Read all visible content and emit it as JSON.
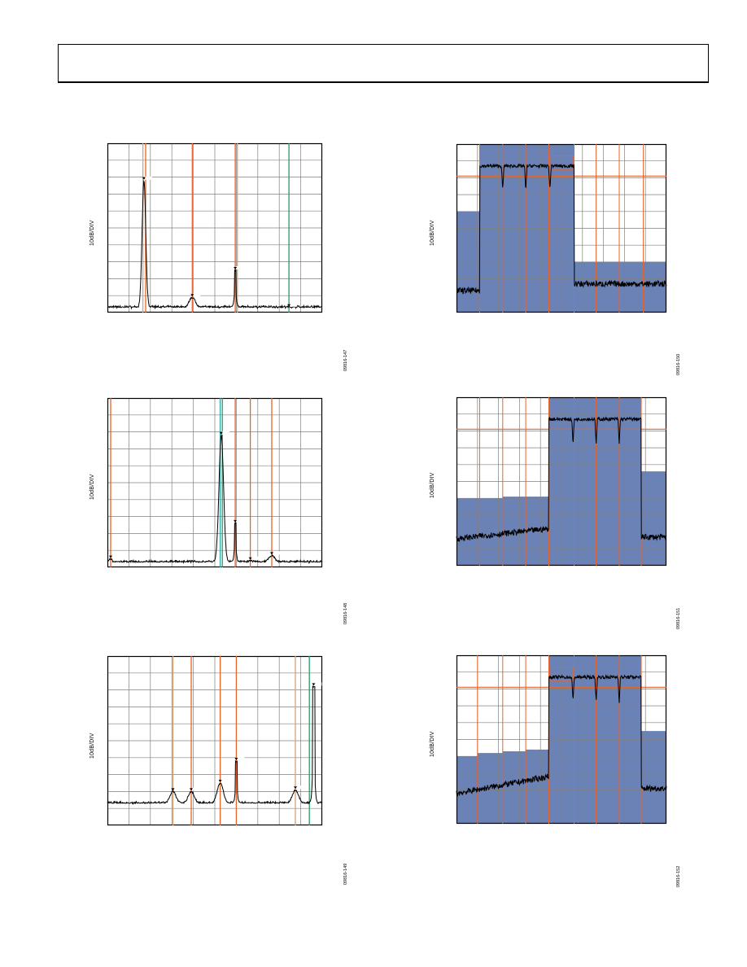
{
  "header": {
    "text": ""
  },
  "colors": {
    "grid": "#808080",
    "trace": "#000000",
    "orange": "#e8632a",
    "tan": "#d9a273",
    "green": "#2a9a68",
    "teal": "#3aa0a0",
    "blue_fill": "#6a82b5"
  },
  "panels": [
    {
      "id": "p1",
      "ylabel": "10dB/DIV",
      "figure_id": "09816-147",
      "markers": [
        {
          "pos": 0.165,
          "color": "tan"
        },
        {
          "pos": 0.178,
          "color": "orange"
        },
        {
          "pos": 0.395,
          "color": "orange"
        },
        {
          "pos": 0.595,
          "color": "orange"
        },
        {
          "pos": 0.605,
          "color": "tan"
        },
        {
          "pos": 0.845,
          "color": "green"
        }
      ],
      "peaks": [
        {
          "pos": 0.17,
          "level": 0.78,
          "width": 0.012
        },
        {
          "pos": 0.395,
          "level": 0.09,
          "width": 0.02
        },
        {
          "pos": 0.595,
          "level": 0.25,
          "width": 0.004
        },
        {
          "pos": 0.845,
          "level": 0.03,
          "width": 0.02
        }
      ],
      "noise_floor": 0.03
    },
    {
      "id": "p2",
      "ylabel": "10dB/DIV",
      "figure_id": "09816-148",
      "markers": [
        {
          "pos": 0.015,
          "color": "orange"
        },
        {
          "pos": 0.525,
          "color": "teal"
        },
        {
          "pos": 0.535,
          "color": "green"
        },
        {
          "pos": 0.595,
          "color": "orange"
        },
        {
          "pos": 0.665,
          "color": "orange"
        },
        {
          "pos": 0.765,
          "color": "orange"
        }
      ],
      "peaks": [
        {
          "pos": 0.015,
          "level": 0.05,
          "width": 0.01
        },
        {
          "pos": 0.53,
          "level": 0.78,
          "width": 0.015
        },
        {
          "pos": 0.595,
          "level": 0.26,
          "width": 0.004
        },
        {
          "pos": 0.665,
          "level": 0.04,
          "width": 0.015
        },
        {
          "pos": 0.765,
          "level": 0.07,
          "width": 0.02
        }
      ],
      "noise_floor": 0.03
    },
    {
      "id": "p3",
      "ylabel": "10dB/DIV",
      "figure_id": "09816-149",
      "markers": [
        {
          "pos": 0.305,
          "color": "tan"
        },
        {
          "pos": 0.39,
          "color": "orange"
        },
        {
          "pos": 0.525,
          "color": "orange"
        },
        {
          "pos": 0.6,
          "color": "orange"
        },
        {
          "pos": 0.875,
          "color": "tan"
        },
        {
          "pos": 0.94,
          "color": "green"
        }
      ],
      "peaks": [
        {
          "pos": 0.305,
          "level": 0.2,
          "width": 0.02
        },
        {
          "pos": 0.39,
          "level": 0.2,
          "width": 0.02
        },
        {
          "pos": 0.525,
          "level": 0.25,
          "width": 0.02
        },
        {
          "pos": 0.6,
          "level": 0.38,
          "width": 0.004
        },
        {
          "pos": 0.875,
          "level": 0.21,
          "width": 0.02
        },
        {
          "pos": 0.96,
          "level": 0.82,
          "width": 0.006
        }
      ],
      "noise_floor": 0.13
    },
    {
      "id": "p4",
      "ylabel": "10dB/DIV",
      "figure_id": "09816-150",
      "masks": [
        {
          "start": 0.0,
          "end": 0.11,
          "level": 0.6
        },
        {
          "start": 0.11,
          "end": 0.56,
          "level": 1.0
        },
        {
          "start": 0.56,
          "end": 1.0,
          "level": 0.3
        }
      ],
      "limit_level": 0.81,
      "vlines": [
        0.11,
        0.22,
        0.33,
        0.44,
        0.56,
        0.665,
        0.775,
        0.89
      ],
      "band": {
        "start": 0.11,
        "end": 0.56,
        "level": 0.87
      },
      "band_box": {
        "start": 0.445,
        "end": 0.555,
        "level": 0.93
      },
      "notches": [
        0.22,
        0.33,
        0.445
      ],
      "outside_low": 0.13,
      "outside_high": 0.17
    },
    {
      "id": "p5",
      "ylabel": "10dB/DIV",
      "figure_id": "09816-151",
      "masks": [
        {
          "start": 0.0,
          "end": 0.22,
          "level": 0.4
        },
        {
          "start": 0.22,
          "end": 0.44,
          "level": 0.41
        },
        {
          "start": 0.44,
          "end": 0.88,
          "level": 1.0
        },
        {
          "start": 0.88,
          "end": 1.0,
          "level": 0.56
        }
      ],
      "limit_level": 0.81,
      "vlines": [
        0.11,
        0.22,
        0.33,
        0.44,
        0.56,
        0.665,
        0.775,
        0.88
      ],
      "band": {
        "start": 0.44,
        "end": 0.88,
        "level": 0.87
      },
      "notches": [
        0.555,
        0.665,
        0.775
      ],
      "outside_low": 0.16,
      "outside_high": 0.17,
      "low_slope": 0.06
    },
    {
      "id": "p6",
      "ylabel": "10dB/DIV",
      "figure_id": "09816-152",
      "masks": [
        {
          "start": 0.0,
          "end": 0.1,
          "level": 0.4
        },
        {
          "start": 0.1,
          "end": 0.22,
          "level": 0.42
        },
        {
          "start": 0.22,
          "end": 0.33,
          "level": 0.43
        },
        {
          "start": 0.33,
          "end": 0.44,
          "level": 0.44
        },
        {
          "start": 0.44,
          "end": 0.88,
          "level": 1.0
        },
        {
          "start": 0.88,
          "end": 1.0,
          "level": 0.55
        }
      ],
      "limit_level": 0.81,
      "vlines": [
        0.1,
        0.22,
        0.33,
        0.44,
        0.56,
        0.665,
        0.775,
        0.88
      ],
      "band": {
        "start": 0.44,
        "end": 0.88,
        "level": 0.87
      },
      "band_box": {
        "start": 0.445,
        "end": 0.555,
        "level": 0.93
      },
      "notches": [
        0.555,
        0.665,
        0.775
      ],
      "outside_low": 0.18,
      "outside_high": 0.21,
      "low_slope": 0.1
    }
  ]
}
